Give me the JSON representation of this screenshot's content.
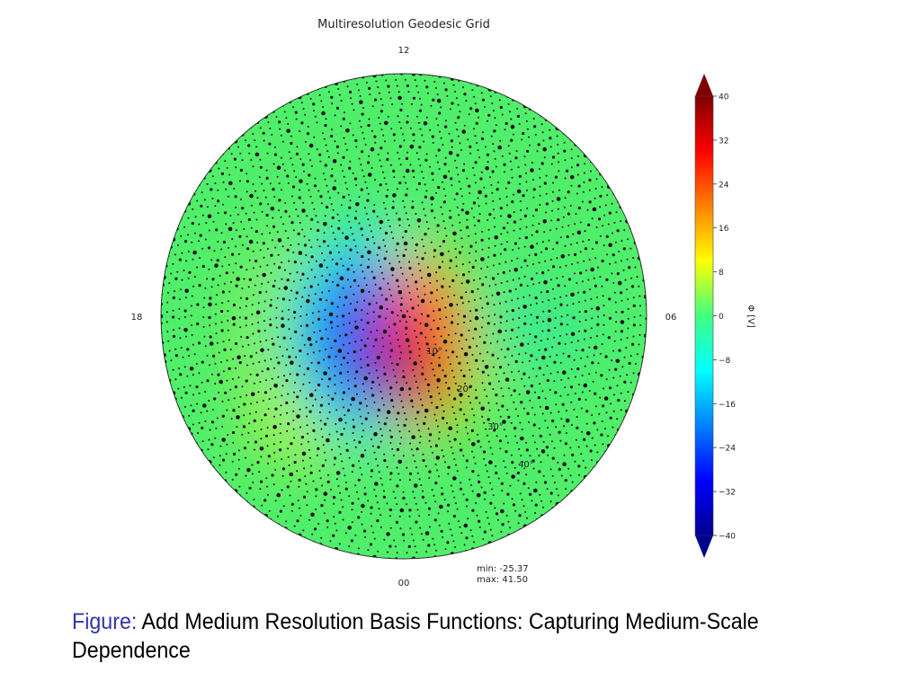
{
  "chart_data": {
    "type": "heatmap",
    "projection": "polar",
    "title": "Multiresolution Geodesic Grid",
    "direction_labels": {
      "top": "12",
      "left": "18",
      "right": "06",
      "bottom": "00"
    },
    "latitude_ring_labels": [
      "10°",
      "20°",
      "30°",
      "40°"
    ],
    "latitude_rings_deg": [
      10,
      20,
      30,
      40
    ],
    "colorbar": {
      "label": "Φ [V]",
      "ticks": [
        40,
        32,
        24,
        16,
        8,
        0,
        -8,
        -16,
        -24,
        -32,
        -40
      ],
      "range": [
        -40,
        40
      ],
      "colormap": "jet",
      "extend": "both"
    },
    "field_features": [
      {
        "kind": "negative-cell",
        "mlt_hours": 19.5,
        "colat_deg": 7,
        "value": -25.37
      },
      {
        "kind": "positive-cell",
        "mlt_hours": 3.0,
        "colat_deg": 7,
        "value": 41.5
      }
    ],
    "grid_points": {
      "levels": [
        "coarse",
        "medium",
        "fine"
      ]
    },
    "stats": {
      "min_label": "min: -25.37",
      "max_label": "max: 41.50",
      "min": -25.37,
      "max": 41.5
    }
  },
  "caption": {
    "lead": "Figure:",
    "text": " Add Medium Resolution Basis Functions: Capturing Medium-Scale Dependence"
  }
}
